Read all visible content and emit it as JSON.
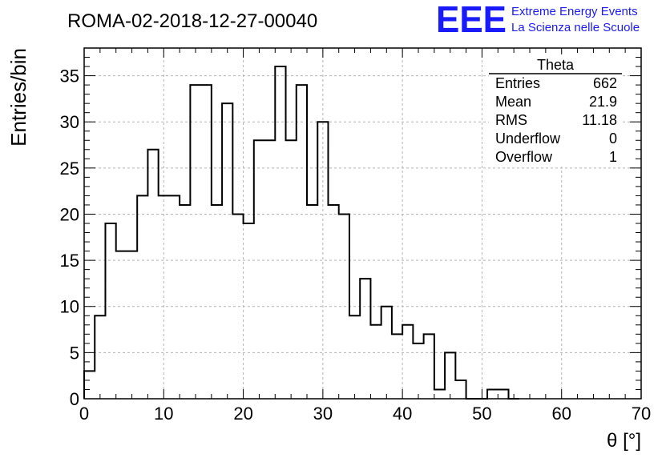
{
  "chart_data": {
    "type": "bar",
    "title": "ROMA-02-2018-12-27-00040",
    "xlabel": "θ [°]",
    "ylabel": "Entries/bin",
    "xlim": [
      0,
      70
    ],
    "ylim": [
      0,
      38
    ],
    "grid": true,
    "x_ticks": [
      0,
      10,
      20,
      30,
      40,
      50,
      60,
      70
    ],
    "y_ticks": [
      0,
      5,
      10,
      15,
      20,
      25,
      30,
      35
    ],
    "bin_width": 1.333,
    "series": [
      {
        "bin_edges": [
          0,
          1.333,
          2.667,
          4,
          5.333,
          6.667,
          8,
          9.333,
          10.667,
          12,
          13.333,
          14.667,
          16,
          17.333,
          18.667,
          20,
          21.333,
          22.667,
          24,
          25.333,
          26.667,
          28,
          29.333,
          30.667,
          32,
          33.333,
          34.667,
          36,
          37.333,
          38.667,
          40,
          41.333,
          42.667,
          44,
          45.333,
          46.667,
          48,
          49.333,
          50.667,
          52,
          53.333,
          54.667
        ],
        "counts": [
          3,
          9,
          19,
          16,
          16,
          22,
          27,
          22,
          22,
          21,
          34,
          34,
          21,
          32,
          20,
          19,
          28,
          28,
          36,
          28,
          34,
          21,
          30,
          21,
          20,
          9,
          13,
          8,
          10,
          7,
          8,
          6,
          7,
          1,
          5,
          2,
          0,
          0,
          1,
          1,
          0
        ]
      }
    ],
    "stats_box": {
      "title": "Theta",
      "rows": [
        {
          "label": "Entries",
          "value": "662"
        },
        {
          "label": "Mean",
          "value": "21.9"
        },
        {
          "label": "RMS",
          "value": "11.18"
        },
        {
          "label": "Underflow",
          "value": "0"
        },
        {
          "label": "Overflow",
          "value": "1"
        }
      ]
    }
  },
  "logo": {
    "letters": "EEE",
    "line1": "Extreme Energy Events",
    "line2": "La Scienza nelle Scuole",
    "color": "#1a1aff"
  },
  "colors": {
    "histogram": "#000000",
    "grid": "#b4b4b4",
    "axis": "#000000"
  }
}
